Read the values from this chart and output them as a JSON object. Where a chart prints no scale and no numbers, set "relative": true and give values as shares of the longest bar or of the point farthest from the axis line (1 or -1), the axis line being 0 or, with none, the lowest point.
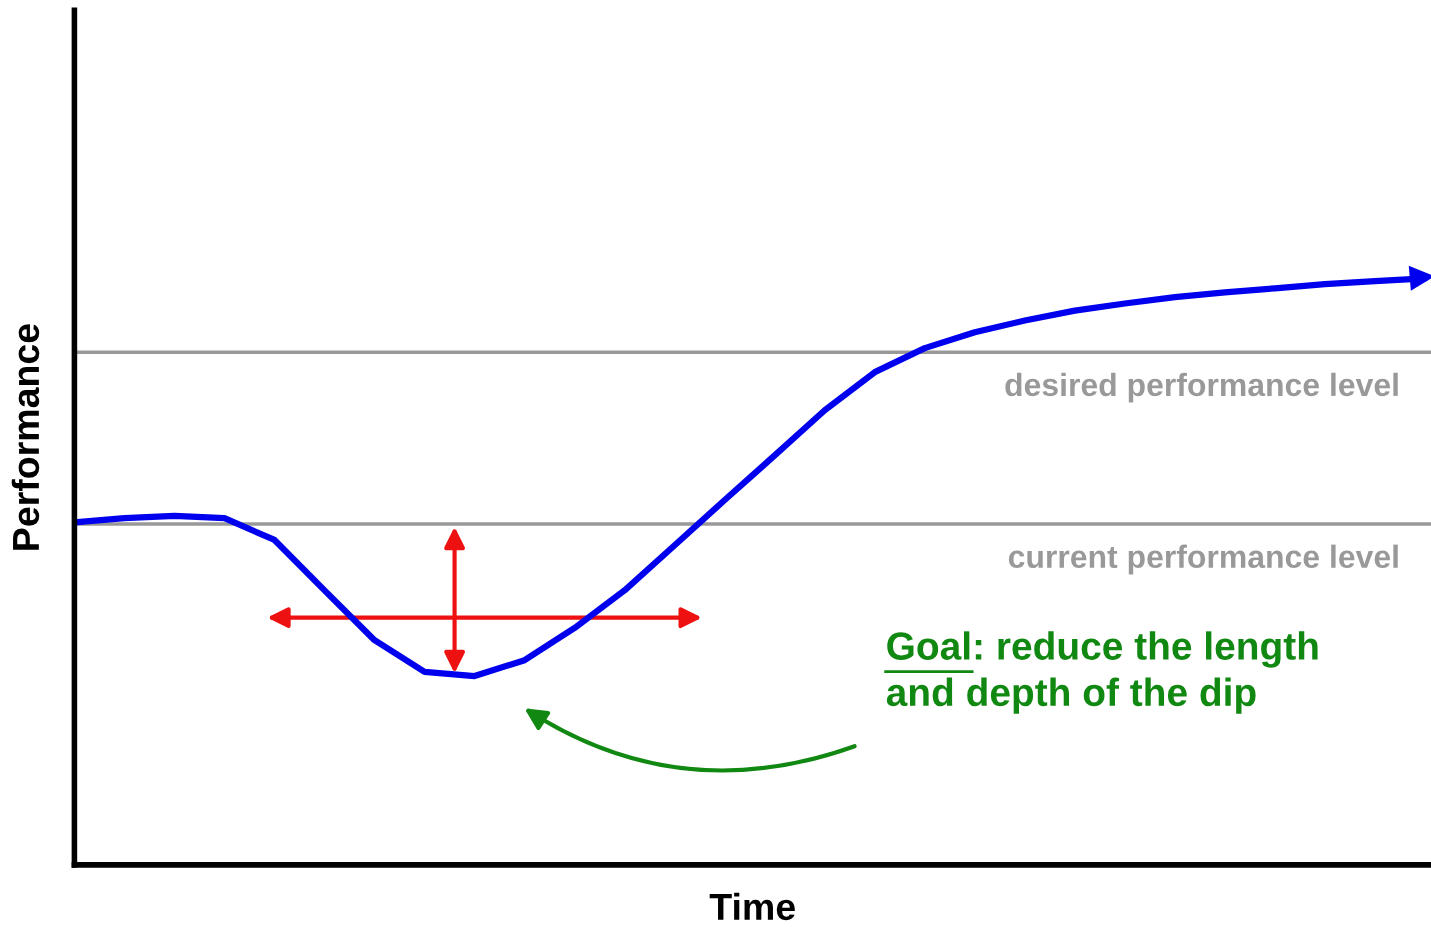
{
  "chart_data": {
    "type": "line",
    "relative": true,
    "xlabel": "Time",
    "ylabel": "Performance",
    "categories": [
      null,
      null,
      null,
      null,
      null,
      null,
      null,
      null,
      null,
      null,
      null,
      null,
      null,
      null,
      null,
      null,
      null,
      null,
      null,
      null,
      null,
      null,
      null,
      null,
      null,
      null,
      null,
      null
    ],
    "series": [
      {
        "color": "#0000ee",
        "values": [
          0.584,
          0.591,
          0.595,
          0.591,
          0.554,
          0.468,
          0.383,
          0.329,
          0.322,
          0.349,
          0.404,
          0.468,
          0.545,
          0.622,
          0.698,
          0.775,
          0.84,
          0.881,
          0.908,
          0.928,
          0.945,
          0.957,
          0.968,
          0.976,
          0.983,
          0.99,
          0.995,
          1.0
        ]
      }
    ],
    "ref_lines": [
      {
        "axis": "y",
        "value": 0.874,
        "label": "desired performance level",
        "color": "#999999"
      },
      {
        "axis": "y",
        "value": 0.581,
        "label": "current performance level",
        "color": "#999999"
      }
    ],
    "annotations": [
      "Goal: reduce the length and depth of the dip"
    ],
    "legend": false,
    "marker": "none",
    "line_style": "solid"
  }
}
